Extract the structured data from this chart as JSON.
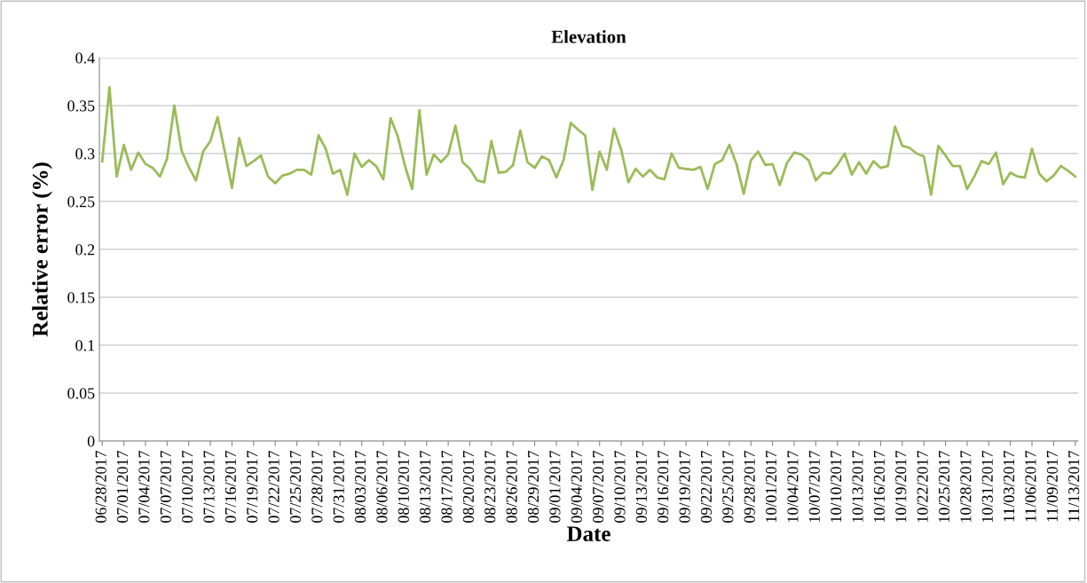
{
  "chart_data": {
    "type": "line",
    "title": "Elevation",
    "xlabel": "Date",
    "ylabel": "Relative error (%)",
    "categories": [
      "06/28/2017",
      null,
      null,
      "07/01/2017",
      null,
      null,
      "07/04/2017",
      null,
      null,
      "07/07/2017",
      null,
      null,
      "07/10/2017",
      null,
      null,
      "07/13/2017",
      null,
      null,
      "07/16/2017",
      null,
      null,
      "07/19/2017",
      null,
      null,
      "07/22/2017",
      null,
      null,
      "07/25/2017",
      null,
      null,
      "07/28/2017",
      null,
      null,
      "07/31/2017",
      null,
      null,
      "08/03/2017",
      null,
      null,
      "08/06/2017",
      null,
      null,
      "08/10/2017",
      null,
      null,
      "08/13/2017",
      null,
      null,
      "08/17/2017",
      null,
      null,
      "08/20/2017",
      null,
      null,
      "08/23/2017",
      null,
      null,
      "08/26/2017",
      null,
      null,
      "08/29/2017",
      null,
      null,
      "09/01/2017",
      null,
      null,
      "09/04/2017",
      null,
      null,
      "09/07/2017",
      null,
      null,
      "09/10/2017",
      null,
      null,
      "09/13/2017",
      null,
      null,
      "09/16/2017",
      null,
      null,
      "09/19/2017",
      null,
      null,
      "09/22/2017",
      null,
      null,
      "09/25/2017",
      null,
      null,
      "09/28/2017",
      null,
      null,
      "10/01/2017",
      null,
      null,
      "10/04/2017",
      null,
      null,
      "10/07/2017",
      null,
      null,
      "10/10/2017",
      null,
      null,
      "10/13/2017",
      null,
      null,
      "10/16/2017",
      null,
      null,
      "10/19/2017",
      null,
      null,
      "10/22/2017",
      null,
      null,
      "10/25/2017",
      null,
      null,
      "10/28/2017",
      null,
      null,
      "10/31/2017",
      null,
      null,
      "11/03/2017",
      null,
      null,
      "11/06/2017",
      null,
      null,
      "11/09/2017",
      null,
      null,
      "11/13/2017"
    ],
    "series": [
      {
        "color": "#9bbb59",
        "values": [
          0.292,
          0.369,
          0.276,
          0.309,
          0.283,
          0.301,
          0.289,
          0.285,
          0.276,
          0.295,
          0.35,
          0.303,
          0.286,
          0.272,
          0.302,
          0.313,
          0.338,
          0.302,
          0.264,
          0.316,
          0.287,
          0.292,
          0.298,
          0.276,
          0.269,
          0.277,
          0.279,
          0.283,
          0.283,
          0.278,
          0.319,
          0.305,
          0.279,
          0.283,
          0.257,
          0.3,
          0.286,
          0.293,
          0.287,
          0.273,
          0.337,
          0.318,
          0.287,
          0.263,
          0.345,
          0.278,
          0.299,
          0.291,
          0.299,
          0.329,
          0.291,
          0.284,
          0.272,
          0.27,
          0.313,
          0.28,
          0.281,
          0.288,
          0.324,
          0.291,
          0.285,
          0.297,
          0.293,
          0.275,
          0.293,
          0.332,
          0.325,
          0.319,
          0.262,
          0.302,
          0.283,
          0.326,
          0.304,
          0.27,
          0.284,
          0.276,
          0.283,
          0.275,
          0.273,
          0.3,
          0.285,
          0.284,
          0.283,
          0.286,
          0.263,
          0.289,
          0.293,
          0.309,
          0.289,
          0.258,
          0.293,
          0.302,
          0.288,
          0.289,
          0.267,
          0.29,
          0.301,
          0.299,
          0.293,
          0.272,
          0.28,
          0.279,
          0.288,
          0.3,
          0.278,
          0.291,
          0.279,
          0.292,
          0.285,
          0.287,
          0.328,
          0.308,
          0.306,
          0.3,
          0.297,
          0.257,
          0.308,
          0.298,
          0.287,
          0.287,
          0.263,
          0.276,
          0.292,
          0.289,
          0.301,
          0.268,
          0.28,
          0.276,
          0.275,
          0.305,
          0.279,
          0.271,
          0.277,
          0.287,
          0.282,
          0.276
        ]
      }
    ],
    "ylim": [
      0,
      0.4
    ],
    "yticks": [
      0,
      0.05,
      0.1,
      0.15,
      0.2,
      0.25,
      0.3,
      0.35,
      0.4
    ],
    "grid": "y",
    "legend": false,
    "marker": "none",
    "line_style": "solid"
  }
}
